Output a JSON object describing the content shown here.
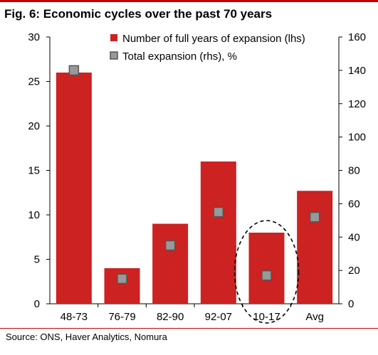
{
  "title": "Fig. 6: Economic cycles over the past 70 years",
  "source": "Source: ONS, Haver Analytics, Nomura",
  "colors": {
    "accent": "#c00000",
    "bar": "#cc2222",
    "marker_fill": "#999999",
    "marker_stroke": "#555555"
  },
  "chart_data": {
    "type": "bar",
    "categories": [
      "48-73",
      "76-79",
      "82-90",
      "92-07",
      "10-17",
      "Avg"
    ],
    "series": [
      {
        "name": "Number of full years of expansion (lhs)",
        "type": "bar",
        "axis": "left",
        "values": [
          26,
          4,
          9,
          16,
          8,
          12.7
        ]
      },
      {
        "name": "Total expansion (rhs), %",
        "type": "scatter",
        "axis": "right",
        "values": [
          140,
          15,
          35,
          55,
          17,
          52
        ]
      }
    ],
    "y_left": {
      "min": 0,
      "max": 30,
      "ticks": [
        0,
        5,
        10,
        15,
        20,
        25,
        30
      ]
    },
    "y_right": {
      "min": 0,
      "max": 160,
      "ticks": [
        0,
        20,
        40,
        60,
        80,
        100,
        120,
        140,
        160
      ]
    },
    "legend_position": "top-right",
    "highlight": {
      "category": "10-17",
      "shape": "dashed-ellipse"
    },
    "xlabel": "",
    "ylabel": ""
  }
}
